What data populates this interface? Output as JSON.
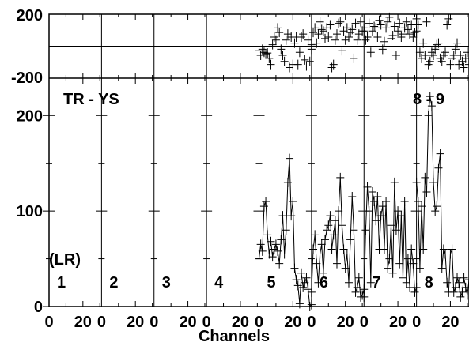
{
  "chart_data": {
    "type": "scatter",
    "description_panels": "Eight panels (1-8) sharing x-axis 0-31 channels each; upper strip shows phase, lower shows amplitude with points joined by lines",
    "xlabel": "Channels",
    "x_tick_labels": [
      "0",
      "20"
    ],
    "top_strip": {
      "ylim": [
        -200,
        200
      ],
      "y_ticks": [
        "200",
        "-200"
      ],
      "reference_line_y": 0
    },
    "main": {
      "ylim": [
        0,
        230
      ],
      "y_ticks": [
        "0",
        "100",
        "200"
      ]
    },
    "annotation_left": "TR - YS",
    "annotation_right": "8 - 9",
    "row_label": "(LR)",
    "panels": [
      {
        "label": "1",
        "amplitude": [],
        "phase": []
      },
      {
        "label": "2",
        "amplitude": [],
        "phase": []
      },
      {
        "label": "3",
        "amplitude": [],
        "phase": []
      },
      {
        "label": "4",
        "amplitude": [],
        "phase": []
      },
      {
        "label": "5",
        "amplitude": [
          50,
          65,
          58,
          105,
          110,
          75,
          55,
          68,
          52,
          60,
          65,
          58,
          45,
          70,
          95,
          55,
          80,
          130,
          155,
          95,
          110,
          40,
          28,
          22,
          3,
          35,
          20,
          25,
          30,
          18,
          0,
          2
        ],
        "phase": [
          -30,
          -60,
          -20,
          -40,
          -50,
          -45,
          -80,
          -120,
          10,
          60,
          40,
          120,
          90,
          -20,
          -60,
          -100,
          40,
          80,
          -140,
          60,
          -120,
          20,
          60,
          -120,
          -40,
          60,
          80,
          -90,
          -130,
          40,
          -100,
          10
        ]
      },
      {
        "label": "6",
        "amplitude": [
          15,
          60,
          75,
          45,
          25,
          55,
          65,
          35,
          70,
          80,
          85,
          95,
          60,
          75,
          90,
          45,
          100,
          135,
          85,
          60,
          40,
          55,
          25,
          70,
          115,
          80,
          15,
          20,
          30,
          10,
          12,
          18
        ],
        "phase": [
          -20,
          90,
          120,
          20,
          80,
          160,
          110,
          100,
          50,
          120,
          60,
          140,
          -140,
          -120,
          40,
          80,
          150,
          160,
          -30,
          100,
          40,
          120,
          60,
          90,
          110,
          -80,
          150,
          40,
          80,
          160,
          100,
          120
        ]
      },
      {
        "label": "7",
        "amplitude": [
          10,
          80,
          125,
          100,
          25,
          120,
          110,
          90,
          115,
          60,
          95,
          105,
          60,
          110,
          40,
          50,
          85,
          35,
          130,
          80,
          100,
          45,
          95,
          30,
          110,
          25,
          50,
          20,
          60,
          45,
          15,
          20
        ],
        "phase": [
          100,
          40,
          60,
          150,
          -40,
          100,
          130,
          120,
          60,
          170,
          140,
          -20,
          30,
          120,
          160,
          190,
          50,
          70,
          130,
          -60,
          100,
          150,
          60,
          80,
          120,
          160,
          110,
          80,
          140,
          60,
          90,
          100
        ]
      },
      {
        "label": "8",
        "amplitude": [
          130,
          110,
          40,
          105,
          60,
          135,
          120,
          200,
          220,
          210,
          130,
          100,
          105,
          145,
          160,
          40,
          60,
          55,
          25,
          15,
          55,
          60,
          15,
          20,
          30,
          25,
          10,
          15,
          30,
          20,
          12,
          28
        ],
        "phase": [
          180,
          140,
          -40,
          -80,
          20,
          -60,
          160,
          -120,
          -100,
          -40,
          -60,
          -20,
          10,
          20,
          -80,
          -100,
          -60,
          -40,
          140,
          180,
          -120,
          -80,
          -60,
          -20,
          20,
          -120,
          -60,
          -100,
          -140,
          -80,
          -40,
          -120
        ]
      }
    ]
  }
}
